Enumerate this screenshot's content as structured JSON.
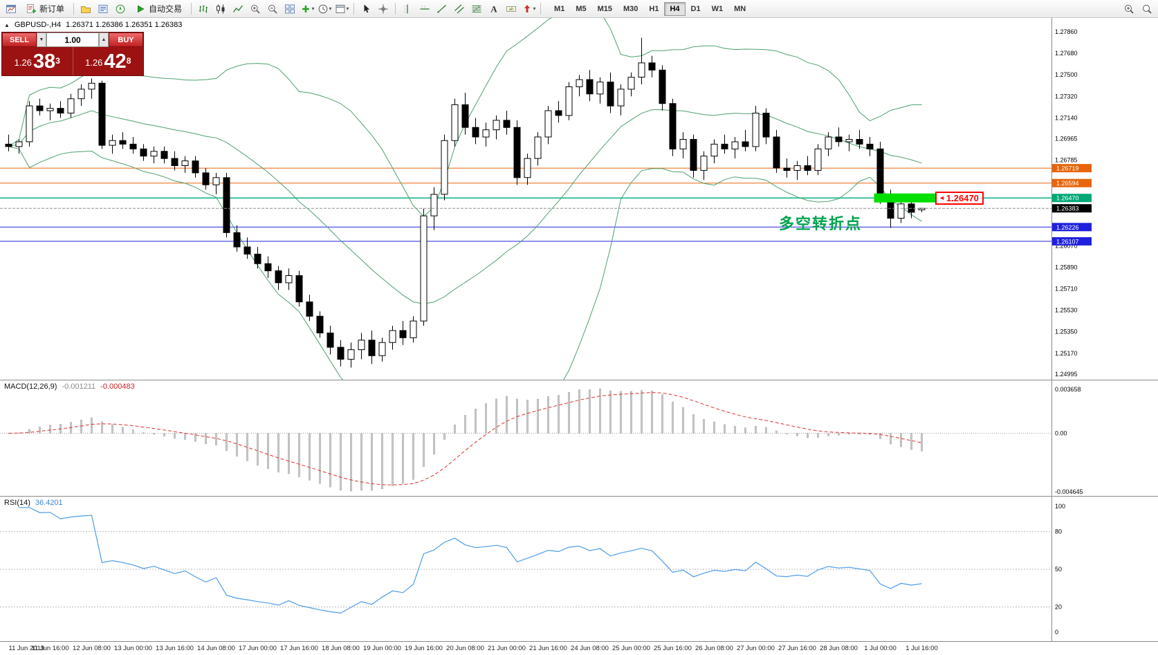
{
  "toolbar": {
    "left": [
      {
        "kind": "icon",
        "name": "new-chart-icon"
      },
      {
        "kind": "button",
        "name": "new-order-button",
        "icon": "new-order-icon",
        "label": "新订单"
      },
      {
        "kind": "sep"
      },
      {
        "kind": "icon",
        "name": "profiles-icon"
      },
      {
        "kind": "icon",
        "name": "market-watch-icon"
      },
      {
        "kind": "icon",
        "name": "navigator-icon"
      },
      {
        "kind": "button",
        "name": "autotrading-button",
        "icon": "autotrading-icon",
        "label": "自动交易"
      },
      {
        "kind": "sep"
      },
      {
        "kind": "icon",
        "name": "bars-chart-icon"
      },
      {
        "kind": "icon",
        "name": "candles-chart-icon"
      },
      {
        "kind": "icon",
        "name": "line-chart-icon"
      },
      {
        "kind": "icon",
        "name": "zoom-in-icon"
      },
      {
        "kind": "icon",
        "name": "zoom-out-icon"
      },
      {
        "kind": "icon",
        "name": "tile-windows-icon"
      },
      {
        "kind": "icon",
        "name": "indicators-icon",
        "caret": true
      },
      {
        "kind": "icon",
        "name": "periods-icon",
        "caret": true
      },
      {
        "kind": "icon",
        "name": "templates-icon",
        "caret": true
      },
      {
        "kind": "sep"
      },
      {
        "kind": "icon",
        "name": "cursor-icon"
      },
      {
        "kind": "icon",
        "name": "crosshair-icon"
      },
      {
        "kind": "sep"
      },
      {
        "kind": "icon",
        "name": "vertical-line-icon"
      },
      {
        "kind": "icon",
        "name": "horizontal-line-icon"
      },
      {
        "kind": "icon",
        "name": "trendline-icon"
      },
      {
        "kind": "icon",
        "name": "channel-icon"
      },
      {
        "kind": "icon",
        "name": "fibonacci-icon"
      },
      {
        "kind": "icon",
        "name": "text-icon"
      },
      {
        "kind": "icon",
        "name": "label-icon"
      },
      {
        "kind": "icon",
        "name": "arrows-icon",
        "caret": true
      },
      {
        "kind": "sep"
      }
    ],
    "timeframes": [
      {
        "label": "M1"
      },
      {
        "label": "M5"
      },
      {
        "label": "M15"
      },
      {
        "label": "M30"
      },
      {
        "label": "H1"
      },
      {
        "label": "H4",
        "active": true
      },
      {
        "label": "D1"
      },
      {
        "label": "W1"
      },
      {
        "label": "MN"
      }
    ],
    "right": [
      {
        "kind": "icon",
        "name": "magnifier-plus-icon"
      },
      {
        "kind": "icon",
        "name": "magnifier-icon"
      }
    ]
  },
  "trade_panel": {
    "sell_label": "SELL",
    "buy_label": "BUY",
    "volume": "1.00",
    "volume_down_glyph": "▼",
    "volume_up_glyph": "▲",
    "sell_prefix": "1.26",
    "sell_big": "38",
    "sell_sup": "3",
    "buy_prefix": "1.26",
    "buy_big": "42",
    "buy_sup": "8"
  },
  "chart": {
    "marker_glyph": "▲",
    "symbol_period": "GBPUSD-,H4",
    "ohlc": "1.26371 1.26386 1.26351 1.26383",
    "annotation": "多空转折点",
    "annotation_color": "#00A44C",
    "callout_arrow": "◄",
    "callout_value": "1.26470",
    "callout_color": "#FF0000"
  },
  "indicators": {
    "macd": {
      "label": "MACD(12,26,9)",
      "main_value": "-0.001211",
      "signal_value": "-0.000483",
      "axis_labels": [
        "0.003658",
        "0.00",
        "-0.004645"
      ],
      "histogram_color": "#CBCBCB",
      "signal_color": "#E03030"
    },
    "rsi": {
      "label": "RSI(14)",
      "value": "36.4201",
      "axis_labels": [
        "100",
        "80",
        "50",
        "20",
        "0"
      ],
      "levels": [
        80,
        50,
        20
      ],
      "line_color": "#4C9BE8"
    }
  },
  "chart_data": {
    "type": "candlestick",
    "symbol": "GBPUSD-",
    "timeframe": "H4",
    "bollinger": {
      "period": 20,
      "deviation": 2,
      "color": "#4DA06E"
    },
    "price_axis_labels": [
      "1.27860",
      "1.27680",
      "1.27500",
      "1.27320",
      "1.27140",
      "1.26965",
      "1.26785",
      "1.26070",
      "1.25890",
      "1.25710",
      "1.25530",
      "1.25350",
      "1.25170",
      "1.24995"
    ],
    "levels": [
      {
        "price": "1.26719",
        "color": "#E8650D",
        "tag": true
      },
      {
        "price": "1.26594",
        "color": "#E8650D",
        "tag": true
      },
      {
        "price": "1.26470",
        "color": "#3FBF9F",
        "tag": true,
        "tag_color": "#00A876",
        "width": 2
      },
      {
        "price": "1.26226",
        "color": "#2020DF",
        "tag": true
      },
      {
        "price": "1.26107",
        "color": "#2020DF",
        "tag": true
      }
    ],
    "bid": {
      "price": "1.26383",
      "line_color": "#909090",
      "tag_color": "#000000"
    },
    "highlight": {
      "price": "1.26470",
      "from_index": 83.7,
      "to_index": 89.6,
      "color": "#00DF00"
    },
    "time_labels": [
      "11 Jun 2019",
      "11 Jun 16:00",
      "12 Jun 08:00",
      "13 Jun 00:00",
      "13 Jun 16:00",
      "14 Jun 08:00",
      "17 Jun 00:00",
      "17 Jun 16:00",
      "18 Jun 08:00",
      "19 Jun 00:00",
      "19 Jun 16:00",
      "20 Jun 08:00",
      "21 Jun 00:00",
      "21 Jun 16:00",
      "24 Jun 08:00",
      "25 Jun 00:00",
      "25 Jun 16:00",
      "26 Jun 08:00",
      "27 Jun 00:00",
      "27 Jun 16:00",
      "28 Jun 08:00",
      "1 Jul 00:00",
      "1 Jul 16:00"
    ],
    "candles": [
      [
        1.2692,
        1.27,
        1.2686,
        1.269
      ],
      [
        1.269,
        1.2696,
        1.2684,
        1.2694
      ],
      [
        1.2694,
        1.2728,
        1.269,
        1.2724
      ],
      [
        1.2724,
        1.273,
        1.2716,
        1.272
      ],
      [
        1.272,
        1.2726,
        1.2712,
        1.2722
      ],
      [
        1.2722,
        1.2728,
        1.2714,
        1.2718
      ],
      [
        1.2718,
        1.2734,
        1.2714,
        1.273
      ],
      [
        1.273,
        1.2742,
        1.2724,
        1.2738
      ],
      [
        1.2738,
        1.2747,
        1.273,
        1.2743
      ],
      [
        1.2743,
        1.2745,
        1.2688,
        1.2691
      ],
      [
        1.2691,
        1.27,
        1.2684,
        1.2695
      ],
      [
        1.2695,
        1.2702,
        1.2688,
        1.2692
      ],
      [
        1.2692,
        1.2698,
        1.2684,
        1.2688
      ],
      [
        1.2688,
        1.2692,
        1.2678,
        1.2682
      ],
      [
        1.2682,
        1.269,
        1.2676,
        1.2686
      ],
      [
        1.2686,
        1.269,
        1.2676,
        1.268
      ],
      [
        1.268,
        1.2686,
        1.267,
        1.2674
      ],
      [
        1.2674,
        1.2682,
        1.2668,
        1.2678
      ],
      [
        1.2678,
        1.2682,
        1.2664,
        1.2668
      ],
      [
        1.2668,
        1.2672,
        1.2654,
        1.2658
      ],
      [
        1.2658,
        1.2668,
        1.265,
        1.2664
      ],
      [
        1.2664,
        1.2668,
        1.2614,
        1.2618
      ],
      [
        1.2618,
        1.2624,
        1.2602,
        1.2606
      ],
      [
        1.2606,
        1.2614,
        1.2596,
        1.26
      ],
      [
        1.26,
        1.2606,
        1.2588,
        1.2592
      ],
      [
        1.2592,
        1.2598,
        1.258,
        1.2586
      ],
      [
        1.2586,
        1.259,
        1.257,
        1.2576
      ],
      [
        1.2576,
        1.2588,
        1.257,
        1.2582
      ],
      [
        1.2582,
        1.2586,
        1.2556,
        1.256
      ],
      [
        1.256,
        1.2566,
        1.2544,
        1.2548
      ],
      [
        1.2548,
        1.2552,
        1.253,
        1.2534
      ],
      [
        1.2534,
        1.254,
        1.2516,
        1.2522
      ],
      [
        1.2522,
        1.2528,
        1.2506,
        1.2512
      ],
      [
        1.2512,
        1.2526,
        1.2505,
        1.252
      ],
      [
        1.252,
        1.2534,
        1.2512,
        1.2528
      ],
      [
        1.2528,
        1.2536,
        1.2508,
        1.2515
      ],
      [
        1.2515,
        1.253,
        1.251,
        1.2526
      ],
      [
        1.2526,
        1.254,
        1.252,
        1.2536
      ],
      [
        1.2536,
        1.2544,
        1.2524,
        1.253
      ],
      [
        1.253,
        1.2548,
        1.2526,
        1.2544
      ],
      [
        1.2544,
        1.2638,
        1.254,
        1.2632
      ],
      [
        1.2632,
        1.2656,
        1.262,
        1.265
      ],
      [
        1.265,
        1.27,
        1.2645,
        1.2695
      ],
      [
        1.2695,
        1.273,
        1.269,
        1.2725
      ],
      [
        1.2725,
        1.2735,
        1.27,
        1.2706
      ],
      [
        1.2706,
        1.2714,
        1.2692,
        1.2698
      ],
      [
        1.2698,
        1.271,
        1.269,
        1.2704
      ],
      [
        1.2704,
        1.2716,
        1.2696,
        1.2712
      ],
      [
        1.2712,
        1.272,
        1.27,
        1.2706
      ],
      [
        1.2706,
        1.2712,
        1.2658,
        1.2664
      ],
      [
        1.2664,
        1.2684,
        1.2658,
        1.268
      ],
      [
        1.268,
        1.2702,
        1.2674,
        1.2698
      ],
      [
        1.2698,
        1.2724,
        1.2692,
        1.272
      ],
      [
        1.272,
        1.2728,
        1.271,
        1.2716
      ],
      [
        1.2716,
        1.2744,
        1.2712,
        1.274
      ],
      [
        1.274,
        1.275,
        1.2732,
        1.2746
      ],
      [
        1.2746,
        1.2754,
        1.2728,
        1.2734
      ],
      [
        1.2734,
        1.2748,
        1.2726,
        1.2744
      ],
      [
        1.2744,
        1.2752,
        1.2718,
        1.2724
      ],
      [
        1.2724,
        1.2742,
        1.2716,
        1.2738
      ],
      [
        1.2738,
        1.2752,
        1.2732,
        1.2748
      ],
      [
        1.2748,
        1.2781,
        1.2742,
        1.276
      ],
      [
        1.276,
        1.2766,
        1.2748,
        1.2754
      ],
      [
        1.2754,
        1.2758,
        1.272,
        1.2726
      ],
      [
        1.2726,
        1.273,
        1.2682,
        1.2688
      ],
      [
        1.2688,
        1.2702,
        1.268,
        1.2696
      ],
      [
        1.2696,
        1.27,
        1.2664,
        1.267
      ],
      [
        1.267,
        1.2686,
        1.2662,
        1.2682
      ],
      [
        1.2682,
        1.2696,
        1.2676,
        1.2692
      ],
      [
        1.2692,
        1.27,
        1.2684,
        1.2688
      ],
      [
        1.2688,
        1.2698,
        1.268,
        1.2694
      ],
      [
        1.2694,
        1.2704,
        1.2686,
        1.269
      ],
      [
        1.269,
        1.2724,
        1.2686,
        1.2718
      ],
      [
        1.2718,
        1.2722,
        1.2692,
        1.2698
      ],
      [
        1.2698,
        1.2704,
        1.2668,
        1.2672
      ],
      [
        1.2672,
        1.268,
        1.2664,
        1.267
      ],
      [
        1.267,
        1.2678,
        1.2662,
        1.2674
      ],
      [
        1.2674,
        1.2682,
        1.2666,
        1.267
      ],
      [
        1.267,
        1.2692,
        1.2666,
        1.2688
      ],
      [
        1.2688,
        1.2702,
        1.2682,
        1.2698
      ],
      [
        1.2698,
        1.2706,
        1.269,
        1.2694
      ],
      [
        1.2694,
        1.27,
        1.2686,
        1.2696
      ],
      [
        1.2696,
        1.2704,
        1.2688,
        1.2692
      ],
      [
        1.2692,
        1.2698,
        1.2682,
        1.2688
      ],
      [
        1.2688,
        1.2694,
        1.2642,
        1.2648
      ],
      [
        1.2648,
        1.2654,
        1.2622,
        1.263
      ],
      [
        1.263,
        1.2646,
        1.2626,
        1.2642
      ],
      [
        1.2642,
        1.2648,
        1.263,
        1.2635
      ],
      [
        1.26371,
        1.26386,
        1.26351,
        1.26383
      ]
    ]
  }
}
